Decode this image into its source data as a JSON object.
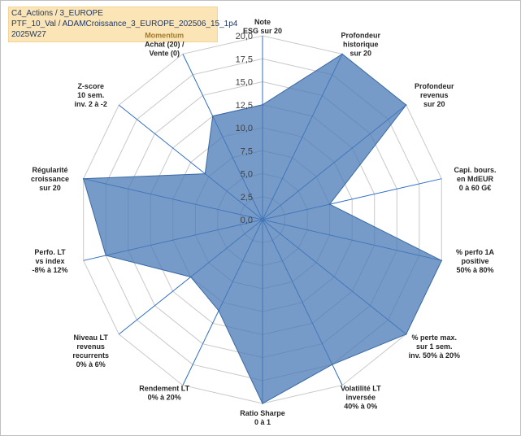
{
  "header": {
    "line1": "C4_Actions / 3_EUROPE",
    "line2": "PTF_10_Val / ADAMCroissance_3_EUROPE_202506_15_1p4",
    "line3": "2025W27"
  },
  "chart_data": {
    "type": "radar",
    "title": "",
    "rmin": 0,
    "rmax": 20,
    "ticks": [
      "0,0",
      "2,5",
      "5,0",
      "7,5",
      "10,0",
      "12,5",
      "15,0",
      "17,5",
      "20,0"
    ],
    "axes": [
      {
        "label": [
          "Note",
          "ESG sur 20"
        ]
      },
      {
        "label": [
          "Profondeur",
          "historique",
          "sur 20"
        ]
      },
      {
        "label": [
          "Profondeur",
          "revenus",
          "sur 20"
        ]
      },
      {
        "label": [
          "Capi. bours.",
          "en MdEUR",
          "0 à 60 G€"
        ]
      },
      {
        "label": [
          "% perfo 1A",
          "positive",
          "50% à 80%"
        ]
      },
      {
        "label": [
          "% perte max.",
          "sur 1 sem.",
          "inv. 50% à 20%"
        ]
      },
      {
        "label": [
          "Volatilité LT",
          "inversée",
          "40% à 0%"
        ]
      },
      {
        "label": [
          "Ratio Sharpe",
          "0 à 1"
        ]
      },
      {
        "label": [
          "Rendement LT",
          "0% à 20%"
        ]
      },
      {
        "label": [
          "Niveau LT",
          "revenus",
          "recurrents",
          "0% à 6%"
        ]
      },
      {
        "label": [
          "Perfo. LT",
          "vs index",
          "-8% à 12%"
        ]
      },
      {
        "label": [
          "Régularité",
          "croissance",
          "sur 20"
        ]
      },
      {
        "label": [
          "Z-score",
          "10 sem.",
          "inv. 2 à -2"
        ]
      },
      {
        "label": [
          "Momentum",
          "Achat (20) /",
          "Vente (0)"
        ],
        "first_line_accent": true
      }
    ],
    "series": [
      {
        "values": [
          12.5,
          20,
          20,
          7.5,
          20,
          20,
          17.5,
          20,
          11,
          10,
          17.5,
          20,
          8,
          12.5
        ],
        "color": "#4a7ab5",
        "fill_opacity": 0.75
      }
    ],
    "grid": true,
    "grid_color": "#c8c8c8",
    "axis_color": "#2e6fc4"
  }
}
